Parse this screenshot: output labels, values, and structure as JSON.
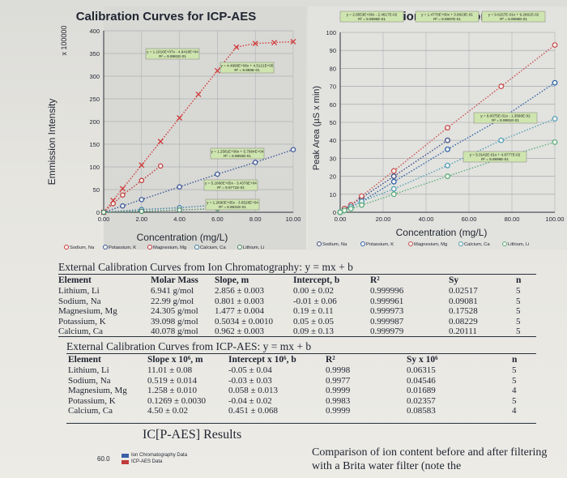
{
  "chart_data": [
    {
      "type": "scatter",
      "title": "Calibration Curves for ICP-AES",
      "xlabel": "Concentration (mg/L)",
      "ylabel": "Emmission Intensity",
      "y_multiplier": "x 100000",
      "xlim": [
        0,
        10
      ],
      "ylim": [
        0,
        400
      ],
      "x_ticks": [
        "0.00",
        "2.00",
        "4.00",
        "6.00",
        "8.00",
        "10.00"
      ],
      "y_ticks": [
        "0",
        "50",
        "100",
        "150",
        "200",
        "250",
        "300",
        "350",
        "400"
      ],
      "grid": true,
      "legend_position": "bottom",
      "series": [
        {
          "name": "Sodium, Na",
          "color": "#d03a3a",
          "marker": "x",
          "line": "dotted",
          "x": [
            0,
            0.5,
            1,
            2,
            3,
            4,
            5,
            6,
            7,
            8,
            9,
            10
          ],
          "y": [
            0,
            26,
            52,
            104,
            156,
            208,
            260,
            312,
            364,
            372,
            374,
            376
          ],
          "equation": "y = 1.1916E+07x - 4.9418E+04",
          "r2": "R² = 9.9981E-01"
        },
        {
          "name": "Potassium, K",
          "color": "#3e5a9a",
          "marker": "o",
          "line": "dotted",
          "x": [
            0,
            1,
            2,
            4,
            6,
            8,
            10
          ],
          "y": [
            0,
            14,
            28,
            56,
            84,
            110,
            138
          ],
          "equation": "y = 1.2581E+06x + 5.7964E+04",
          "r2": "R² = 9.9994E-01"
        },
        {
          "name": "Magnesium, Mg",
          "color": "#c23c3c",
          "marker": "o",
          "line": "dotted",
          "x": [
            0,
            0.5,
            1,
            2,
            3
          ],
          "y": [
            0,
            19,
            38,
            70,
            102
          ],
          "equation": "y = 4.4990E+06x + 4.5121E+05",
          "r2": "R² = 9.999E-01"
        },
        {
          "name": "Calcium, Ca",
          "color": "#3f7fa5",
          "marker": "o",
          "line": "dotted",
          "x": [
            0,
            2,
            4,
            6,
            8
          ],
          "y": [
            0,
            6,
            10,
            16,
            22
          ],
          "equation": "y = 5.1866E+05x - 3.4376E+04",
          "r2": "R² = 9.9771E-01"
        },
        {
          "name": "Lithium, Li",
          "color": "#4a8a66",
          "marker": "o",
          "line": "dotted",
          "x": [
            0,
            2,
            4,
            6,
            8
          ],
          "y": [
            0,
            2,
            5,
            8,
            12
          ],
          "equation": "y = 1.2690E+05x - 3.6528E+04",
          "r2": "R² = 9.9831E-01"
        }
      ]
    },
    {
      "type": "scatter",
      "title": "Calibration Curves for IC",
      "xlabel": "Concentration (mg/L)",
      "ylabel": "Peak Area (µS x min)",
      "xlim": [
        0,
        100
      ],
      "ylim": [
        0,
        100
      ],
      "x_ticks": [
        "0.00",
        "20.00",
        "40.00",
        "60.00",
        "80.00",
        "100.00"
      ],
      "y_ticks": [
        "0",
        "10",
        "20",
        "30",
        "40",
        "50",
        "60",
        "70",
        "80",
        "90",
        "100"
      ],
      "grid": true,
      "legend_position": "bottom",
      "series": [
        {
          "name": "Sodium, Na",
          "color": "#3c4c84",
          "marker": "o",
          "line": "dotted",
          "x": [
            0,
            2,
            5,
            10,
            25,
            50
          ],
          "y": [
            0,
            2,
            4,
            8,
            20,
            40
          ],
          "equation": "y = 2.8553E+00x - 2.4617E-02",
          "r2": "R² = 9.9996E-01"
        },
        {
          "name": "Potassium, K",
          "color": "#2f64a8",
          "marker": "o",
          "line": "dotted",
          "x": [
            0,
            2,
            5,
            10,
            25,
            50,
            75,
            100
          ],
          "y": [
            0,
            2,
            3,
            6,
            17,
            35,
            52,
            72
          ],
          "equation": "y = 1.4770E+00x + 3.0823E-01",
          "r2": "R² = 9.9997E-01"
        },
        {
          "name": "Magnesium, Mg",
          "color": "#c85252",
          "marker": "o",
          "line": "dotted",
          "x": [
            0,
            2,
            5,
            10,
            25,
            50,
            75,
            100
          ],
          "y": [
            0,
            2,
            4,
            9,
            23,
            47,
            70,
            93
          ],
          "equation": "y = 9.6157E-01x + 9.2681E-02",
          "r2": "R² = 9.9998E-01"
        },
        {
          "name": "Calcium, Ca",
          "color": "#52a0b8",
          "marker": "o",
          "line": "dotted",
          "x": [
            0,
            2,
            5,
            10,
            25,
            50,
            75,
            100
          ],
          "y": [
            0,
            1,
            3,
            6,
            13,
            26,
            40,
            52
          ],
          "equation": "y = 8.0075E-01x - 1.3560E-02",
          "r2": "R² = 9.9991E-01"
        },
        {
          "name": "Lithium, Li",
          "color": "#5cae7a",
          "marker": "o",
          "line": "dotted",
          "x": [
            0,
            2,
            5,
            10,
            25,
            50,
            75,
            100
          ],
          "y": [
            0,
            1,
            2,
            4,
            10,
            20,
            30,
            39
          ],
          "equation": "y = 5.0142E-01x + 4.9777E-02",
          "r2": "R² = 9.9999E-01"
        }
      ]
    },
    {
      "type": "bar",
      "title": "IC[P-AES] Results",
      "y_ticks": [
        "60.0"
      ],
      "series": [
        {
          "name": "Ion Chromatography Data",
          "color": "#3a5ea8",
          "values": []
        },
        {
          "name": "ICP-AES Data",
          "color": "#c23a3a",
          "values": []
        }
      ]
    }
  ],
  "ic_table": {
    "title": "External Calibration Curves from Ion Chromatography: y = mx + b",
    "headers": [
      "Element",
      "Molar Mass",
      "Slope, m",
      "Intercept, b",
      "R²",
      "Sy",
      "n"
    ],
    "rows": [
      [
        "Lithium, Li",
        "6.941 g/mol",
        "2.856 ± 0.003",
        "0.00 ± 0.02",
        "0.999996",
        "0.02517",
        "5"
      ],
      [
        "Sodium, Na",
        "22.99 g/mol",
        "0.801 ± 0.003",
        "-0.01 ± 0.06",
        "0.999961",
        "0.09081",
        "5"
      ],
      [
        "Magnesium, Mg",
        "24.305 g/mol",
        "1.477 ± 0.004",
        "0.19 ± 0.11",
        "0.999973",
        "0.17528",
        "5"
      ],
      [
        "Potassium, K",
        "39.098 g/mol",
        "0.5034 ± 0.0010",
        "0.05 ± 0.05",
        "0.999987",
        "0.08229",
        "5"
      ],
      [
        "Calcium, Ca",
        "40.078 g/mol",
        "0.962 ± 0.003",
        "0.09 ± 0.13",
        "0.999979",
        "0.20111",
        "5"
      ]
    ]
  },
  "icp_table": {
    "title": "External Calibration Curves from ICP-AES: y = mx + b",
    "headers": [
      "Element",
      "Slope x 10⁶, m",
      "Intercept x 10⁶, b",
      "R²",
      "Sy x 10⁶",
      "n"
    ],
    "rows": [
      [
        "Lithium, Li",
        "11.01 ± 0.08",
        "-0.05 ± 0.04",
        "0.9998",
        "0.06315",
        "5"
      ],
      [
        "Sodium, Na",
        "0.519 ± 0.014",
        "-0.03 ± 0.03",
        "0.9977",
        "0.04546",
        "5"
      ],
      [
        "Magnesium, Mg",
        "1.258 ± 0.010",
        "0.058 ± 0.013",
        "0.9999",
        "0.01689",
        "4"
      ],
      [
        "Potassium, K",
        "0.1269 ± 0.0030",
        "-0.04 ± 0.02",
        "0.9983",
        "0.02357",
        "5"
      ],
      [
        "Calcium, Ca",
        "4.50 ± 0.02",
        "0.451 ± 0.068",
        "0.9999",
        "0.08583",
        "4"
      ]
    ]
  },
  "caption": "Comparison of ion content before and after filtering with a Brita water filter (note the"
}
